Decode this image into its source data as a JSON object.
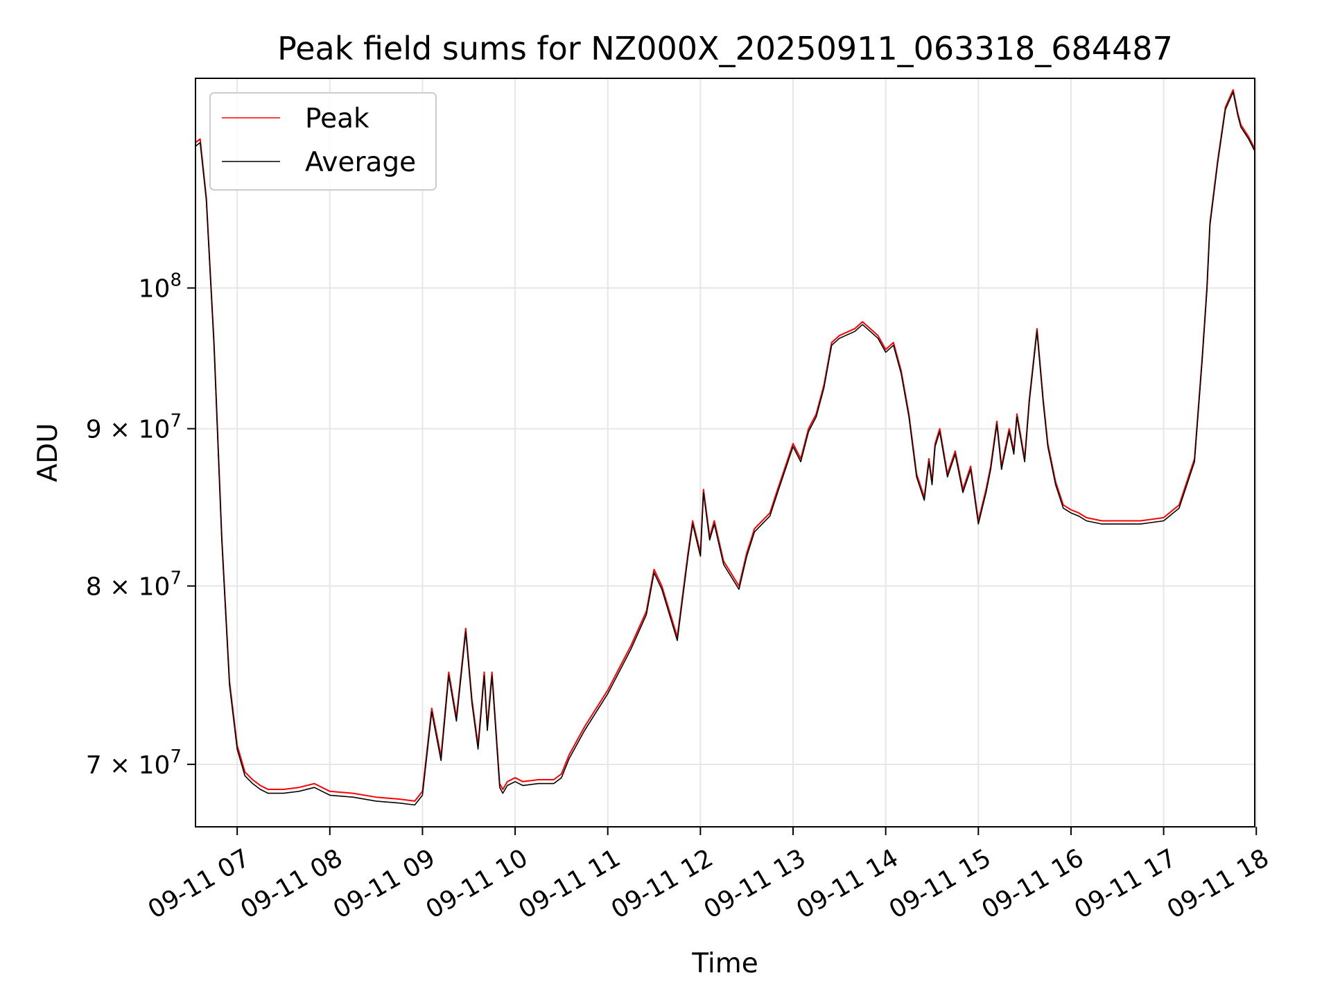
{
  "chart_data": {
    "type": "line",
    "title": "Peak field sums for NZ000X_20250911_063318_684487",
    "xlabel": "Time",
    "ylabel": "ADU",
    "yscale": "log",
    "xlim": [
      "2025-09-11 06:33",
      "2025-09-11 17:59"
    ],
    "ylim": [
      66800000,
      117000000
    ],
    "grid": true,
    "legend_position": "upper left",
    "x_tick_labels": [
      "09-11 07",
      "09-11 08",
      "09-11 09",
      "09-11 10",
      "09-11 11",
      "09-11 12",
      "09-11 13",
      "09-11 14",
      "09-11 15",
      "09-11 16",
      "09-11 17",
      "09-11 18"
    ],
    "x_tick_times": [
      "2025-09-11 07:00",
      "2025-09-11 08:00",
      "2025-09-11 09:00",
      "2025-09-11 10:00",
      "2025-09-11 11:00",
      "2025-09-11 12:00",
      "2025-09-11 13:00",
      "2025-09-11 14:00",
      "2025-09-11 15:00",
      "2025-09-11 16:00",
      "2025-09-11 17:00",
      "2025-09-11 18:00"
    ],
    "y_ticks": [
      {
        "value": 70000000,
        "label": "7 × 10^7"
      },
      {
        "value": 80000000,
        "label": "8 × 10^7"
      },
      {
        "value": 90000000,
        "label": "9 × 10^7"
      },
      {
        "value": 100000000,
        "label": "10^8"
      }
    ],
    "series": [
      {
        "name": "Peak",
        "color": "#ff0000",
        "x": [
          "06:33",
          "06:36",
          "06:40",
          "06:45",
          "06:50",
          "06:55",
          "07:00",
          "07:05",
          "07:10",
          "07:15",
          "07:20",
          "07:30",
          "07:40",
          "07:50",
          "08:00",
          "08:15",
          "08:30",
          "08:45",
          "08:55",
          "09:00",
          "09:06",
          "09:12",
          "09:17",
          "09:22",
          "09:28",
          "09:32",
          "09:36",
          "09:40",
          "09:42",
          "09:45",
          "09:50",
          "09:52",
          "09:55",
          "10:00",
          "10:05",
          "10:15",
          "10:25",
          "10:30",
          "10:35",
          "10:45",
          "11:00",
          "11:15",
          "11:25",
          "11:30",
          "11:35",
          "11:45",
          "11:52",
          "11:55",
          "12:00",
          "12:02",
          "12:06",
          "12:09",
          "12:15",
          "12:25",
          "12:30",
          "12:35",
          "12:45",
          "12:50",
          "13:00",
          "13:05",
          "13:10",
          "13:15",
          "13:20",
          "13:25",
          "13:30",
          "13:40",
          "13:45",
          "13:50",
          "13:55",
          "14:00",
          "14:05",
          "14:10",
          "14:15",
          "14:20",
          "14:25",
          "14:28",
          "14:30",
          "14:32",
          "14:35",
          "14:40",
          "14:45",
          "14:50",
          "14:55",
          "15:00",
          "15:05",
          "15:08",
          "15:12",
          "15:15",
          "15:18",
          "15:20",
          "15:23",
          "15:25",
          "15:30",
          "15:33",
          "15:35",
          "15:38",
          "15:42",
          "15:45",
          "15:50",
          "15:55",
          "16:00",
          "16:05",
          "16:10",
          "16:20",
          "16:30",
          "16:45",
          "17:00",
          "17:10",
          "17:20",
          "17:25",
          "17:28",
          "17:30",
          "17:35",
          "17:40",
          "17:45",
          "17:48",
          "17:50",
          "17:55",
          "17:59"
        ],
        "y": [
          111500000,
          111800000,
          107000000,
          96000000,
          83000000,
          74500000,
          71000000,
          69600000,
          69200000,
          68900000,
          68700000,
          68700000,
          68800000,
          69000000,
          68600000,
          68500000,
          68300000,
          68200000,
          68100000,
          68600000,
          73000000,
          70400000,
          75000000,
          72500000,
          77500000,
          73500000,
          71000000,
          75000000,
          72000000,
          75000000,
          69000000,
          68700000,
          69100000,
          69300000,
          69100000,
          69200000,
          69200000,
          69500000,
          70500000,
          72000000,
          74000000,
          76500000,
          78500000,
          81000000,
          80000000,
          77000000,
          82000000,
          84000000,
          82000000,
          86000000,
          83000000,
          84000000,
          81500000,
          80000000,
          82000000,
          83500000,
          84500000,
          86000000,
          89000000,
          88000000,
          90000000,
          91000000,
          93000000,
          96000000,
          96500000,
          97000000,
          97500000,
          97000000,
          96500000,
          95500000,
          96000000,
          94000000,
          91000000,
          87000000,
          85500000,
          88000000,
          86500000,
          89000000,
          90000000,
          87000000,
          88500000,
          86000000,
          87500000,
          84000000,
          86000000,
          87500000,
          90500000,
          87500000,
          89000000,
          90000000,
          88500000,
          91000000,
          88000000,
          92000000,
          94000000,
          97000000,
          92000000,
          89000000,
          86500000,
          85000000,
          84700000,
          84500000,
          84200000,
          84000000,
          84000000,
          84000000,
          84200000,
          85000000,
          88000000,
          95000000,
          100000000,
          105000000,
          110000000,
          114500000,
          116000000,
          114000000,
          113000000,
          112000000,
          111000000
        ]
      },
      {
        "name": "Average",
        "color": "#000000",
        "x": [
          "06:33",
          "06:36",
          "06:40",
          "06:45",
          "06:50",
          "06:55",
          "07:00",
          "07:05",
          "07:10",
          "07:15",
          "07:20",
          "07:30",
          "07:40",
          "07:50",
          "08:00",
          "08:15",
          "08:30",
          "08:45",
          "08:55",
          "09:00",
          "09:06",
          "09:12",
          "09:17",
          "09:22",
          "09:28",
          "09:32",
          "09:36",
          "09:40",
          "09:42",
          "09:45",
          "09:50",
          "09:52",
          "09:55",
          "10:00",
          "10:05",
          "10:15",
          "10:25",
          "10:30",
          "10:35",
          "10:45",
          "11:00",
          "11:15",
          "11:25",
          "11:30",
          "11:35",
          "11:45",
          "11:52",
          "11:55",
          "12:00",
          "12:02",
          "12:06",
          "12:09",
          "12:15",
          "12:25",
          "12:30",
          "12:35",
          "12:45",
          "12:50",
          "13:00",
          "13:05",
          "13:10",
          "13:15",
          "13:20",
          "13:25",
          "13:30",
          "13:40",
          "13:45",
          "13:50",
          "13:55",
          "14:00",
          "14:05",
          "14:10",
          "14:15",
          "14:20",
          "14:25",
          "14:28",
          "14:30",
          "14:32",
          "14:35",
          "14:40",
          "14:45",
          "14:50",
          "14:55",
          "15:00",
          "15:05",
          "15:08",
          "15:12",
          "15:15",
          "15:18",
          "15:20",
          "15:23",
          "15:25",
          "15:30",
          "15:33",
          "15:35",
          "15:38",
          "15:42",
          "15:45",
          "15:50",
          "15:55",
          "16:00",
          "16:05",
          "16:10",
          "16:20",
          "16:30",
          "16:45",
          "17:00",
          "17:10",
          "17:20",
          "17:25",
          "17:28",
          "17:30",
          "17:35",
          "17:40",
          "17:45",
          "17:48",
          "17:50",
          "17:55",
          "17:59"
        ],
        "y": [
          111200000,
          111500000,
          106800000,
          95800000,
          82800000,
          74300000,
          70800000,
          69400000,
          69000000,
          68700000,
          68500000,
          68500000,
          68600000,
          68800000,
          68400000,
          68300000,
          68100000,
          68000000,
          67900000,
          68400000,
          72800000,
          70200000,
          74800000,
          72300000,
          77300000,
          73300000,
          70800000,
          74800000,
          71800000,
          74800000,
          68800000,
          68500000,
          68900000,
          69100000,
          68900000,
          69000000,
          69000000,
          69300000,
          70300000,
          71800000,
          73800000,
          76300000,
          78300000,
          80800000,
          79800000,
          76800000,
          81800000,
          83800000,
          81800000,
          85800000,
          82800000,
          83800000,
          81300000,
          79800000,
          81800000,
          83300000,
          84300000,
          85800000,
          88800000,
          87800000,
          89800000,
          90800000,
          92800000,
          95800000,
          96300000,
          96800000,
          97300000,
          96800000,
          96300000,
          95300000,
          95800000,
          93800000,
          90800000,
          86800000,
          85300000,
          87800000,
          86300000,
          88800000,
          89800000,
          86800000,
          88300000,
          85800000,
          87300000,
          83800000,
          85800000,
          87300000,
          90300000,
          87300000,
          88800000,
          89800000,
          88300000,
          90800000,
          87800000,
          91800000,
          93800000,
          96800000,
          91800000,
          88800000,
          86300000,
          84800000,
          84500000,
          84300000,
          84000000,
          83800000,
          83800000,
          83800000,
          84000000,
          84800000,
          87800000,
          94800000,
          99800000,
          104800000,
          109800000,
          114300000,
          115800000,
          113800000,
          112800000,
          111800000,
          110800000
        ]
      }
    ]
  }
}
